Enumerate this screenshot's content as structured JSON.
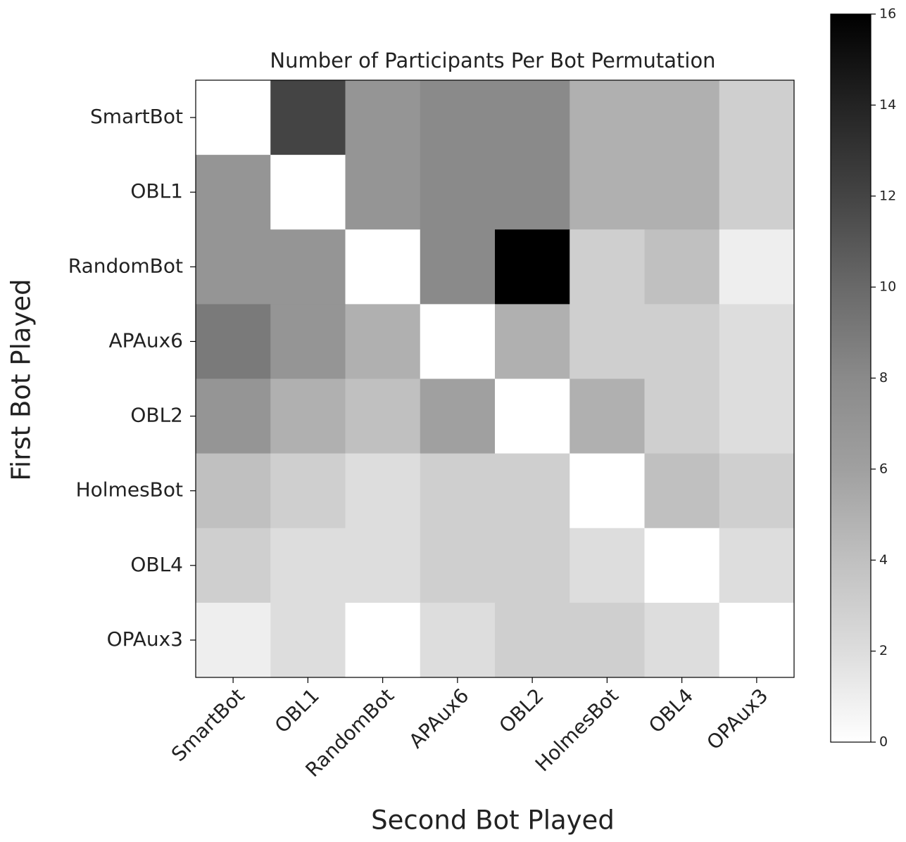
{
  "chart_data": {
    "type": "heatmap",
    "title": "Number of Participants Per Bot Permutation",
    "x_label": "Second Bot Played",
    "y_label": "First Bot Played",
    "x_categories": [
      "SmartBot",
      "OBL1",
      "RandomBot",
      "APAux6",
      "OBL2",
      "HolmesBot",
      "OBL4",
      "OPAux3"
    ],
    "y_categories": [
      "SmartBot",
      "OBL1",
      "RandomBot",
      "APAux6",
      "OBL2",
      "HolmesBot",
      "OBL4",
      "OPAux3"
    ],
    "values": [
      [
        0,
        12,
        7,
        8,
        8,
        5,
        5,
        3
      ],
      [
        7,
        0,
        7,
        8,
        8,
        5,
        5,
        3
      ],
      [
        7,
        7,
        0,
        8,
        16,
        3,
        4,
        1
      ],
      [
        9,
        7,
        5,
        0,
        5,
        3,
        3,
        2
      ],
      [
        7,
        5,
        4,
        6,
        0,
        5,
        3,
        2
      ],
      [
        4,
        3,
        2,
        3,
        3,
        0,
        4,
        3
      ],
      [
        3,
        2,
        2,
        3,
        3,
        2,
        0,
        2
      ],
      [
        1,
        2,
        0,
        2,
        3,
        3,
        2,
        0
      ]
    ],
    "colormap": "Greys",
    "clim": [
      0,
      16
    ],
    "cticks": [
      0,
      2,
      4,
      6,
      8,
      10,
      12,
      14,
      16
    ]
  }
}
